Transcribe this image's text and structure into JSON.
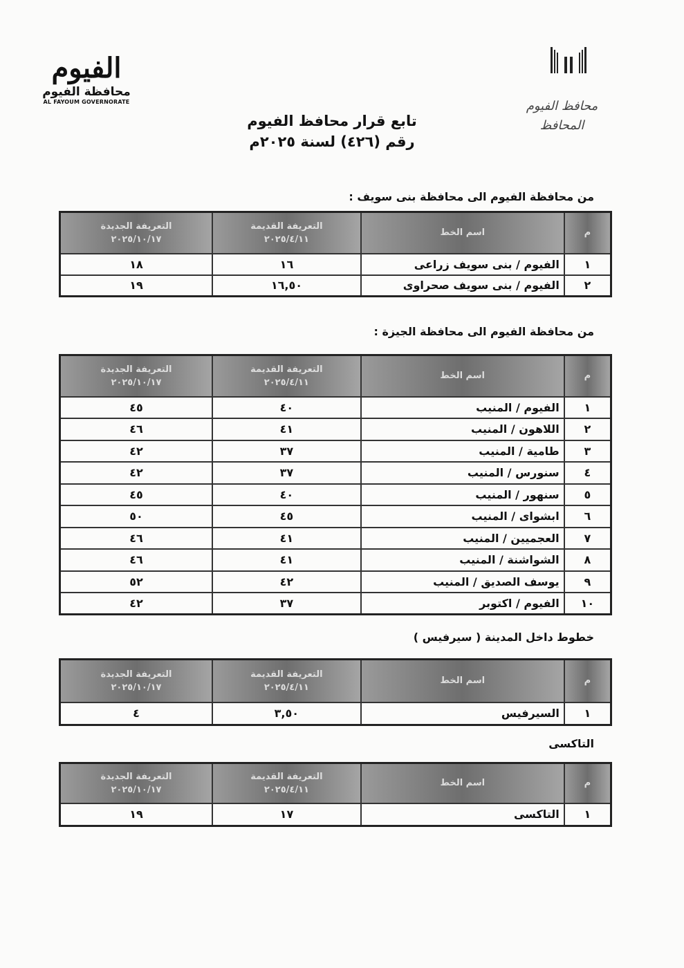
{
  "header": {
    "logo_mark": "الفيوم",
    "logo_arabic": "محافظة الفيوم",
    "logo_english": "AL FAYOUM GOVERNORATE",
    "handwritten": [
      "محافظ الفيوم",
      "المحافظ"
    ],
    "title_line1": "تابع قرار محافظ الفيوم",
    "title_line2": "رقم (٤٢٦) لسنة ٢٠٢٥م"
  },
  "columns": {
    "no": "م",
    "route": "اسم الخط",
    "old": "التعريفة القديمة",
    "old_date": "٢٠٢٥/٤/١١",
    "new": "التعريفة الجديدة",
    "new_date": "٢٠٢٥/١٠/١٧"
  },
  "sections": [
    {
      "heading": "من محافظة الفيوم الى محافظة بنى سويف :",
      "rows": [
        {
          "no": "١",
          "route": "الفيوم / بنى سويف زراعى",
          "old": "١٦",
          "new": "١٨"
        },
        {
          "no": "٢",
          "route": "الفيوم / بنى سويف صحراوى",
          "old": "١٦,٥٠",
          "new": "١٩"
        }
      ]
    },
    {
      "heading": "من محافظة الفيوم الى محافظة الجيزة :",
      "rows": [
        {
          "no": "١",
          "route": "الفيوم / المنيب",
          "old": "٤٠",
          "new": "٤٥"
        },
        {
          "no": "٢",
          "route": "اللاهون / المنيب",
          "old": "٤١",
          "new": "٤٦"
        },
        {
          "no": "٣",
          "route": "طامية / المنيب",
          "old": "٣٧",
          "new": "٤٢"
        },
        {
          "no": "٤",
          "route": "سنورس / المنيب",
          "old": "٣٧",
          "new": "٤٢"
        },
        {
          "no": "٥",
          "route": "سنهور / المنيب",
          "old": "٤٠",
          "new": "٤٥"
        },
        {
          "no": "٦",
          "route": "ابشواى / المنيب",
          "old": "٤٥",
          "new": "٥٠"
        },
        {
          "no": "٧",
          "route": "العجميين / المنيب",
          "old": "٤١",
          "new": "٤٦"
        },
        {
          "no": "٨",
          "route": "الشواشنة / المنيب",
          "old": "٤١",
          "new": "٤٦"
        },
        {
          "no": "٩",
          "route": "يوسف الصديق / المنيب",
          "old": "٤٢",
          "new": "٥٢"
        },
        {
          "no": "١٠",
          "route": "الفيوم / اكتوبر",
          "old": "٣٧",
          "new": "٤٢"
        }
      ]
    },
    {
      "heading": "خطوط داخل المدينة ( سيرفيس )",
      "rows": [
        {
          "no": "١",
          "route": "السيرفيس",
          "old": "٣,٥٠",
          "new": "٤"
        }
      ]
    },
    {
      "heading": "التاكسى",
      "rows": [
        {
          "no": "١",
          "route": "التاكسى",
          "old": "١٧",
          "new": "١٩"
        }
      ]
    }
  ]
}
